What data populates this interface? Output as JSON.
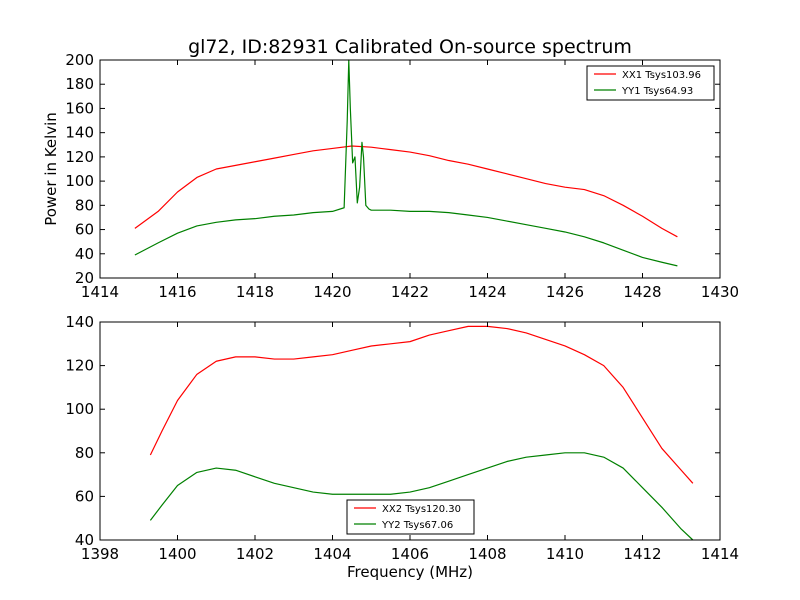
{
  "chart_data": [
    {
      "type": "line",
      "title": "gl72, ID:82931 Calibrated On-source spectrum",
      "xlabel": "",
      "ylabel": "Power in Kelvin",
      "xlim": [
        1414,
        1430
      ],
      "ylim": [
        20,
        200
      ],
      "xticks": [
        "1414",
        "1416",
        "1418",
        "1420",
        "1422",
        "1424",
        "1426",
        "1428",
        "1430"
      ],
      "yticks": [
        "20",
        "40",
        "60",
        "80",
        "100",
        "120",
        "140",
        "160",
        "180",
        "200"
      ],
      "legend": "top-right",
      "series": [
        {
          "name": "XX1 Tsys103.96",
          "color": "#ff0000",
          "x": [
            1414.9,
            1415.5,
            1416.0,
            1416.5,
            1417.0,
            1417.5,
            1418.0,
            1418.5,
            1419.0,
            1419.5,
            1420.0,
            1420.5,
            1421.0,
            1421.5,
            1422.0,
            1422.5,
            1423.0,
            1423.5,
            1424.0,
            1424.5,
            1425.0,
            1425.5,
            1426.0,
            1426.5,
            1427.0,
            1427.5,
            1428.0,
            1428.5,
            1428.9
          ],
          "y": [
            61,
            75,
            91,
            103,
            110,
            113,
            116,
            119,
            122,
            125,
            127,
            129,
            128,
            126,
            124,
            121,
            117,
            114,
            110,
            106,
            102,
            98,
            95,
            93,
            88,
            80,
            71,
            61,
            54
          ]
        },
        {
          "name": "YY1 Tsys64.93",
          "color": "#008000",
          "x": [
            1414.9,
            1415.5,
            1416.0,
            1416.5,
            1417.0,
            1417.5,
            1418.0,
            1418.5,
            1419.0,
            1419.5,
            1420.0,
            1420.3,
            1420.38,
            1420.42,
            1420.46,
            1420.52,
            1420.58,
            1420.64,
            1420.7,
            1420.76,
            1420.8,
            1420.86,
            1420.94,
            1421.0,
            1421.5,
            1422.0,
            1422.5,
            1423.0,
            1423.5,
            1424.0,
            1424.5,
            1425.0,
            1425.5,
            1426.0,
            1426.5,
            1427.0,
            1427.5,
            1428.0,
            1428.5,
            1428.9
          ],
          "y": [
            39,
            49,
            57,
            63,
            66,
            68,
            69,
            71,
            72,
            74,
            75,
            78,
            150,
            200,
            160,
            115,
            120,
            82,
            95,
            132,
            120,
            80,
            77,
            76,
            76,
            75,
            75,
            74,
            72,
            70,
            67,
            64,
            61,
            58,
            54,
            49,
            43,
            37,
            33,
            30
          ]
        }
      ]
    },
    {
      "type": "line",
      "title": "",
      "xlabel": "Frequency (MHz)",
      "ylabel": "",
      "xlim": [
        1398,
        1414
      ],
      "ylim": [
        40,
        140
      ],
      "xticks": [
        "1398",
        "1400",
        "1402",
        "1404",
        "1406",
        "1408",
        "1410",
        "1412",
        "1414"
      ],
      "yticks": [
        "40",
        "60",
        "80",
        "100",
        "120",
        "140"
      ],
      "legend": "bottom-center",
      "series": [
        {
          "name": "XX2 Tsys120.30",
          "color": "#ff0000",
          "x": [
            1399.3,
            1399.6,
            1400.0,
            1400.5,
            1401.0,
            1401.5,
            1402.0,
            1402.5,
            1403.0,
            1403.5,
            1404.0,
            1404.5,
            1405.0,
            1405.5,
            1406.0,
            1406.5,
            1407.0,
            1407.5,
            1408.0,
            1408.5,
            1409.0,
            1409.5,
            1410.0,
            1410.5,
            1411.0,
            1411.5,
            1412.0,
            1412.5,
            1413.0,
            1413.3
          ],
          "y": [
            79,
            90,
            104,
            116,
            122,
            124,
            124,
            123,
            123,
            124,
            125,
            127,
            129,
            130,
            131,
            134,
            136,
            138,
            138,
            137,
            135,
            132,
            129,
            125,
            120,
            110,
            96,
            82,
            72,
            66
          ]
        },
        {
          "name": "YY2 Tsys67.06",
          "color": "#008000",
          "x": [
            1399.3,
            1399.6,
            1400.0,
            1400.5,
            1401.0,
            1401.5,
            1402.0,
            1402.5,
            1403.0,
            1403.5,
            1404.0,
            1404.5,
            1405.0,
            1405.5,
            1406.0,
            1406.5,
            1407.0,
            1407.5,
            1408.0,
            1408.5,
            1409.0,
            1409.5,
            1410.0,
            1410.5,
            1411.0,
            1411.5,
            1412.0,
            1412.5,
            1413.0,
            1413.3
          ],
          "y": [
            49,
            56,
            65,
            71,
            73,
            72,
            69,
            66,
            64,
            62,
            61,
            61,
            61,
            61,
            62,
            64,
            67,
            70,
            73,
            76,
            78,
            79,
            80,
            80,
            78,
            73,
            64,
            55,
            45,
            40
          ]
        }
      ]
    }
  ]
}
